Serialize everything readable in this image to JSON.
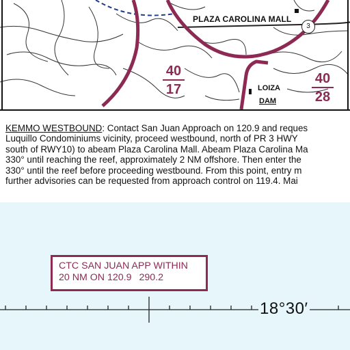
{
  "map": {
    "mall_label": "PLAZA CAROLINA MALL",
    "route_shield": "3",
    "loiza_label": "LOIZA",
    "dam_label": "DAM",
    "mef_left": {
      "top": "40",
      "bottom": "17"
    },
    "mef_right": {
      "top": "40",
      "bottom": "28"
    },
    "colors": {
      "boundary": "#8d2a54",
      "route": "#1f3b8a",
      "roads": "#333333",
      "water": "#e6f6fb"
    }
  },
  "notes": {
    "heading": "KEMMO WESTBOUND",
    "line1": ": Contact San Juan Approach on 120.9 and reques",
    "line2": "Luquillo Condominiums vicinity, proceed westbound, north of PR 3 HWY",
    "line3": "south of RWY10) to abeam Plaza Carolina Mall. Abeam Plaza Carolina Ma",
    "line4": "330° until reaching the reef, approximately 2 NM offshore. Then enter the",
    "line5": "330° until the reef before proceeding westbound. From this point, entry m",
    "line6": "further advisories can be requested from approach control on 119.4. Mai"
  },
  "ctc": {
    "line1": "CTC SAN JUAN APP WITHIN",
    "line2a": "20 NM ON 120.9",
    "line2b": "290.2"
  },
  "latitude_label": "18°30′"
}
